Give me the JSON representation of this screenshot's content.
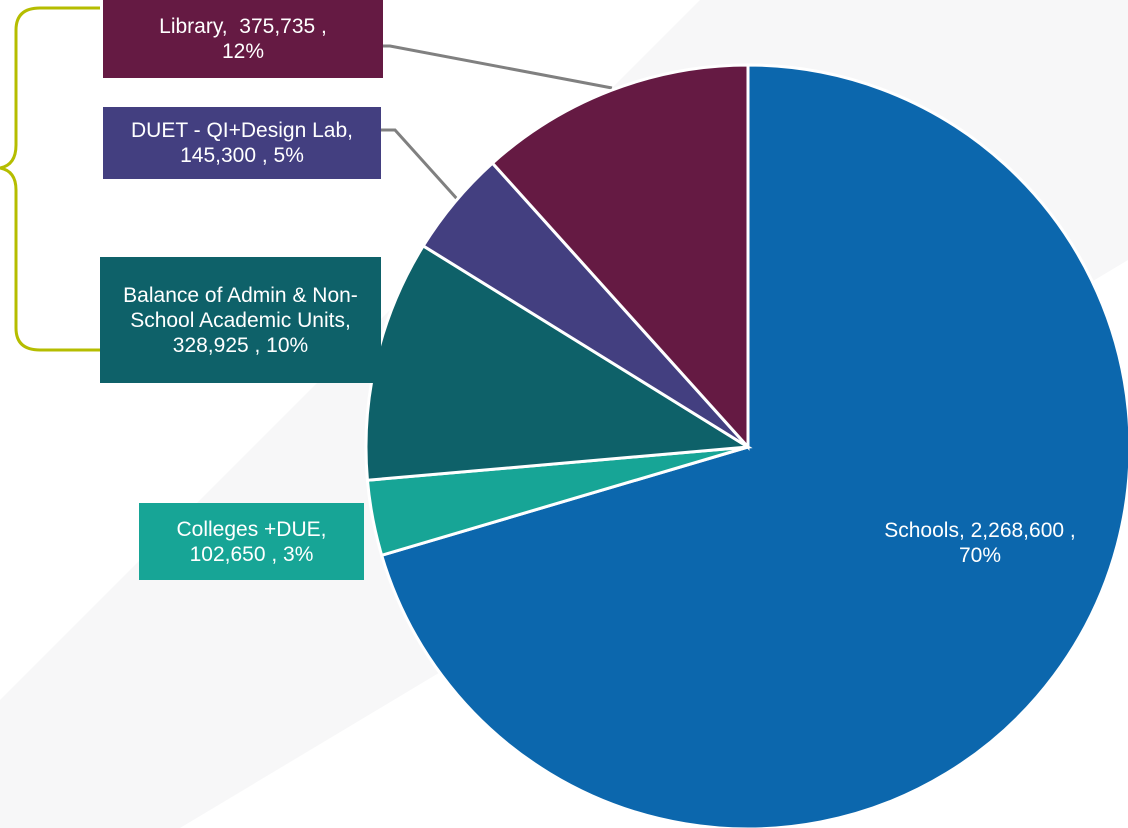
{
  "chart_data": {
    "type": "pie",
    "categories": [
      "Schools",
      "Colleges +DUE",
      "Balance of Admin & Non-School Academic Units",
      "DUET - QI+Design Lab",
      "Library"
    ],
    "values": [
      2268600,
      102650,
      328925,
      145300,
      375735
    ],
    "percents": [
      70,
      3,
      10,
      5,
      12
    ],
    "labels": [
      "Schools, 2,268,600 , 70%",
      "Colleges +DUE, 102,650 , 3%",
      "Balance of Admin & Non-School Academic Units,  328,925 , 10%",
      "DUET - QI+Design Lab,  145,300 , 5%",
      "Library,  375,735 , 12%"
    ],
    "colors": [
      "#0c67ad",
      "#17a596",
      "#0e6169",
      "#433f80",
      "#651a43"
    ]
  }
}
